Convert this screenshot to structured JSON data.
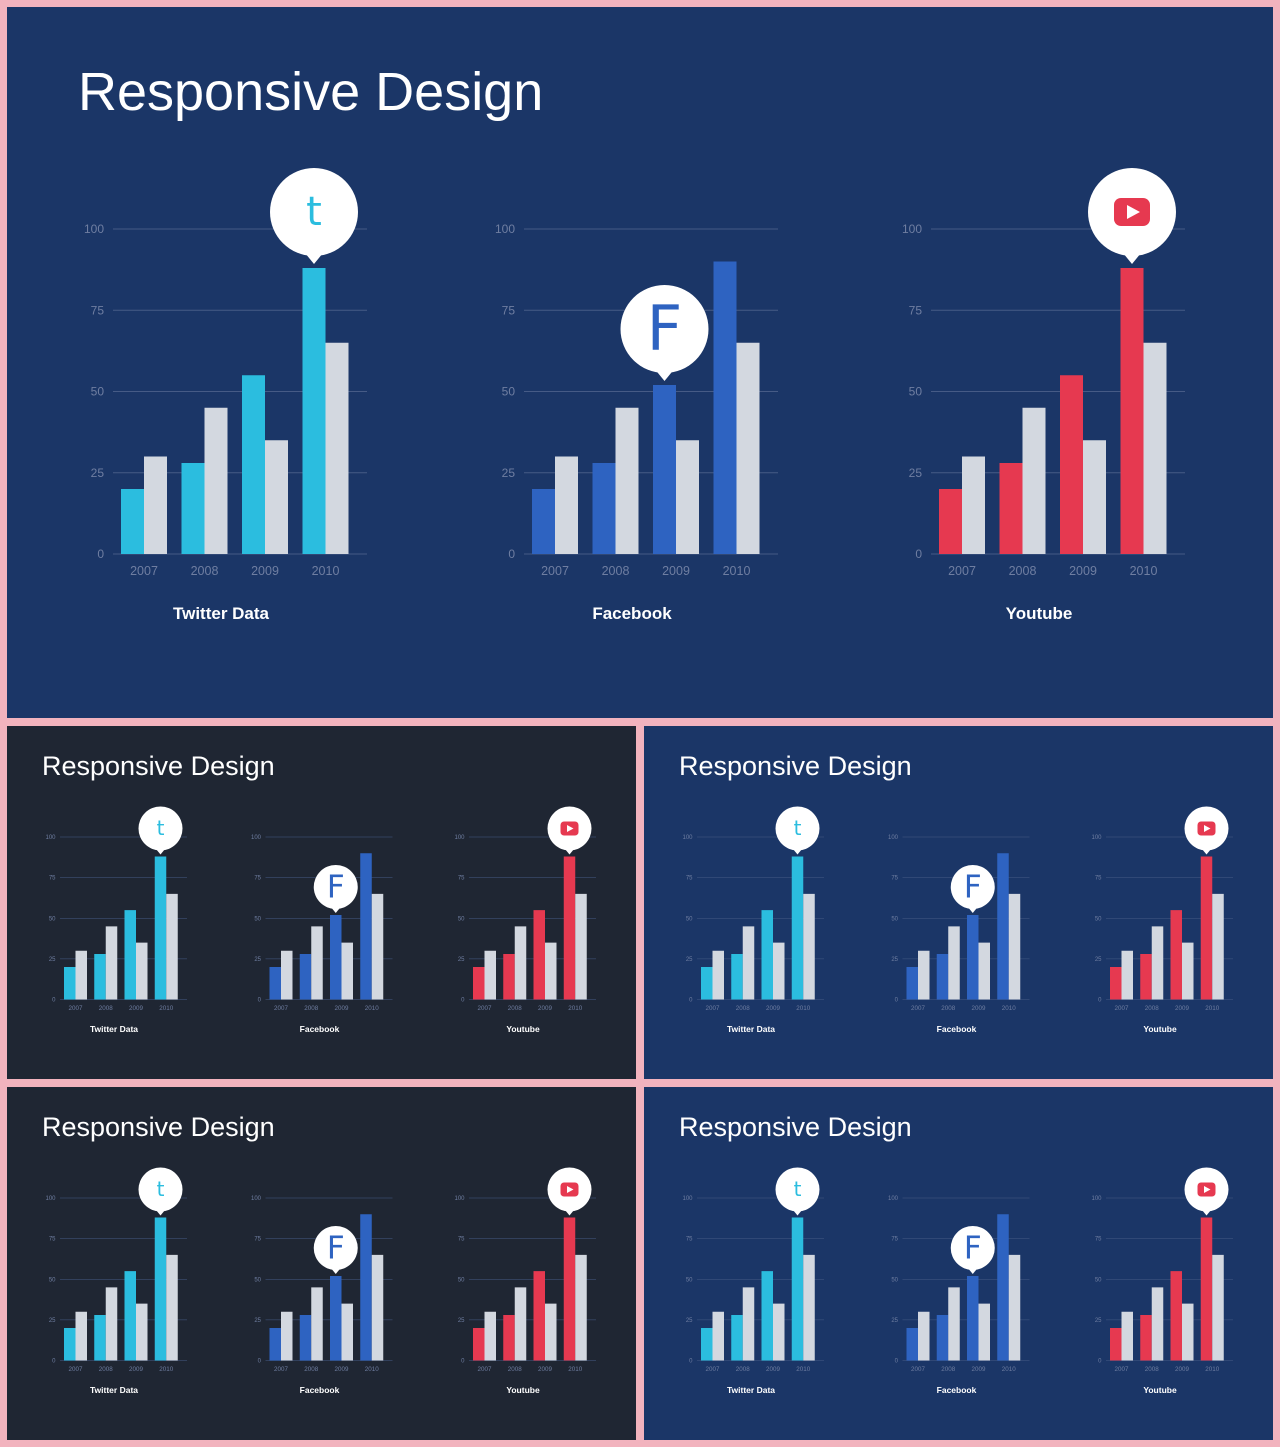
{
  "colors": {
    "frame": "#f2b3be",
    "navy_background": "#1b3667",
    "dark_background": "#1f2633",
    "twitter": "#2bbddf",
    "facebook": "#2e63c1",
    "youtube": "#e63950",
    "comparison_bar": "#d3d8e0",
    "gridline": "#465b86",
    "tick_label": "#6f7ea1",
    "label": "#ffffff"
  },
  "slides": [
    {
      "theme": "navy",
      "title": "Responsive Design"
    },
    {
      "theme": "dark",
      "title": "Responsive Design"
    },
    {
      "theme": "navy",
      "title": "Responsive Design"
    },
    {
      "theme": "dark",
      "title": "Responsive Design"
    },
    {
      "theme": "navy",
      "title": "Responsive Design"
    }
  ],
  "chart_data": [
    {
      "type": "bar",
      "title": "Twitter Data",
      "icon": "twitter-icon",
      "icon_glyph": "t",
      "color": "#2bbddf",
      "categories": [
        "2007",
        "2008",
        "2009",
        "2010"
      ],
      "series": [
        {
          "values": [
            20,
            28,
            55,
            88
          ]
        },
        {
          "values": [
            30,
            45,
            35,
            65
          ]
        }
      ],
      "y_ticks": [
        "0",
        "25",
        "50",
        "75",
        "100"
      ],
      "ylim": [
        0,
        100
      ],
      "grid": true,
      "marker_on": {
        "series": 0,
        "category": 3
      }
    },
    {
      "type": "bar",
      "title": "Facebook",
      "icon": "facebook-icon",
      "icon_glyph": "F",
      "color": "#2e63c1",
      "categories": [
        "2007",
        "2008",
        "2009",
        "2010"
      ],
      "series": [
        {
          "values": [
            20,
            28,
            52,
            90
          ]
        },
        {
          "values": [
            30,
            45,
            35,
            65
          ]
        }
      ],
      "y_ticks": [
        "0",
        "25",
        "50",
        "75",
        "100"
      ],
      "ylim": [
        0,
        100
      ],
      "grid": true,
      "marker_on": {
        "series": 0,
        "category": 2
      }
    },
    {
      "type": "bar",
      "title": "Youtube",
      "icon": "youtube-icon",
      "icon_glyph": "",
      "color": "#e63950",
      "categories": [
        "2007",
        "2008",
        "2009",
        "2010"
      ],
      "series": [
        {
          "values": [
            20,
            28,
            55,
            88
          ]
        },
        {
          "values": [
            30,
            45,
            35,
            65
          ]
        }
      ],
      "y_ticks": [
        "0",
        "25",
        "50",
        "75",
        "100"
      ],
      "ylim": [
        0,
        100
      ],
      "grid": true,
      "marker_on": {
        "series": 0,
        "category": 3
      }
    }
  ]
}
